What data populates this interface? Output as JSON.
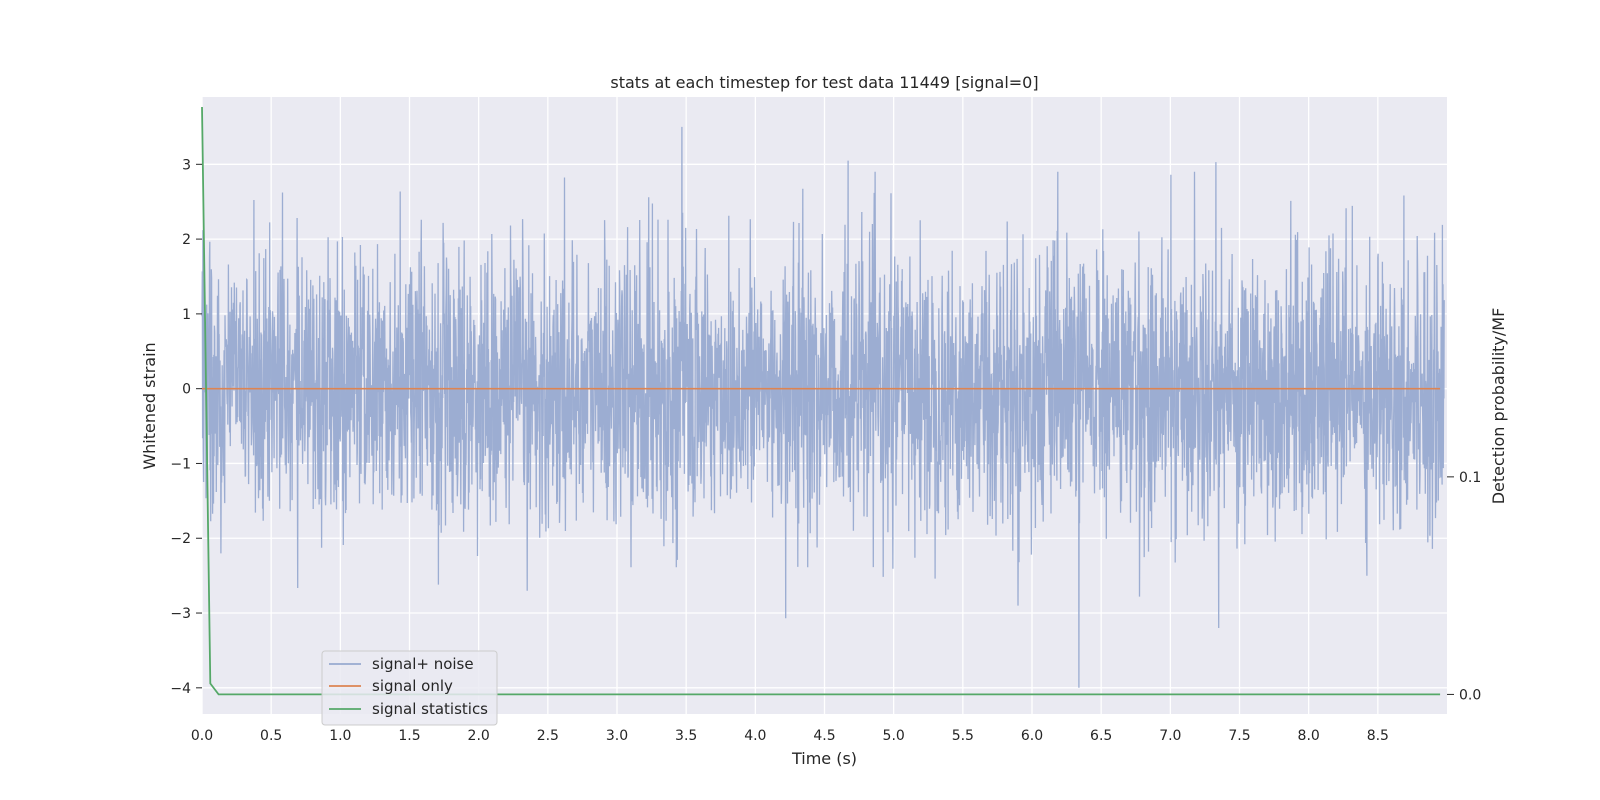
{
  "chart_data": {
    "type": "line",
    "title": "stats at each timestep for test data 11449 [signal=0]",
    "xlabel": "Time (s)",
    "ylabel": "Whitened strain",
    "y2label": "Detection probability/MF",
    "xlim": [
      0,
      9.0
    ],
    "ylim": [
      -4.35,
      3.9
    ],
    "y2lim": [
      -0.009,
      0.2746
    ],
    "xticks": [
      0.0,
      0.5,
      1.0,
      1.5,
      2.0,
      2.5,
      3.0,
      3.5,
      4.0,
      4.5,
      5.0,
      5.5,
      6.0,
      6.5,
      7.0,
      7.5,
      8.0,
      8.5
    ],
    "xtick_labels": [
      "0.0",
      "0.5",
      "1.0",
      "1.5",
      "2.0",
      "2.5",
      "3.0",
      "3.5",
      "4.0",
      "4.5",
      "5.0",
      "5.5",
      "6.0",
      "6.5",
      "7.0",
      "7.5",
      "8.0",
      "8.5"
    ],
    "yticks": [
      -4,
      -3,
      -2,
      -1,
      0,
      1,
      2,
      3
    ],
    "ytick_labels": [
      "−4",
      "−3",
      "−2",
      "−1",
      "0",
      "1",
      "2",
      "3"
    ],
    "y2ticks": [
      0.0,
      0.1
    ],
    "y2tick_labels": [
      "0.0",
      "0.1"
    ],
    "grid": true,
    "legend": {
      "placement": "lower-left",
      "entries": [
        "signal+ noise",
        "signal only",
        "signal statistics"
      ]
    },
    "series": [
      {
        "name": "signal+ noise",
        "color": "#98aad0",
        "kind": "noise",
        "approx_std": 0.9,
        "peaks": [
          {
            "x": 3.47,
            "y": 3.5
          },
          {
            "x": 4.67,
            "y": 3.05
          },
          {
            "x": 7.33,
            "y": 3.03
          },
          {
            "x": 6.34,
            "y": -4.0
          },
          {
            "x": 4.22,
            "y": -3.07
          },
          {
            "x": 7.35,
            "y": -3.2
          }
        ]
      },
      {
        "name": "signal only",
        "color": "#dd8452",
        "x": [
          0.0,
          8.95
        ],
        "y": [
          0.0,
          0.0
        ]
      },
      {
        "name": "signal statistics",
        "color": "#55a868",
        "axis": "right",
        "x": [
          0.0,
          0.06,
          0.12,
          0.2,
          1.0,
          2.0,
          3.0,
          4.0,
          5.0,
          6.0,
          7.0,
          8.0,
          8.95
        ],
        "y": [
          0.27,
          0.005,
          0.0,
          0.0,
          0.0,
          0.0,
          0.0,
          0.0,
          0.0,
          0.0,
          0.0,
          0.0,
          0.0
        ]
      }
    ]
  }
}
